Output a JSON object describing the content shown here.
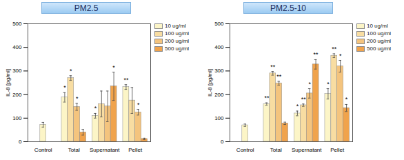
{
  "chart_data": [
    {
      "type": "bar",
      "title": "PM2.5",
      "ylabel": "IL-8 [pg/ml]",
      "categories": [
        "Control",
        "Total",
        "Supernatant",
        "Pellet"
      ],
      "ylim": [
        0,
        500
      ],
      "yticks": [
        0,
        100,
        200,
        300,
        400,
        500
      ],
      "legend": "top-right",
      "series": [
        {
          "name": "10 ug/ml",
          "color": "#fcf5c7",
          "values": [
            72,
            188,
            110,
            232
          ],
          "errors": [
            10,
            20,
            10,
            10
          ],
          "annotations": [
            null,
            "*",
            "*",
            "**"
          ]
        },
        {
          "name": "100 ug/ml",
          "color": "#f8dda2",
          "values": [
            null,
            270,
            160,
            175
          ],
          "errors": [
            null,
            10,
            55,
            55
          ],
          "annotations": [
            null,
            "*",
            null,
            null
          ]
        },
        {
          "name": "200 ug/ml",
          "color": "#f4c47e",
          "values": [
            null,
            148,
            150,
            125
          ],
          "errors": [
            null,
            15,
            65,
            12
          ],
          "annotations": [
            null,
            "*",
            null,
            "*"
          ]
        },
        {
          "name": "500 ug/ml",
          "color": "#f0a34c",
          "values": [
            null,
            40,
            235,
            12
          ],
          "errors": [
            null,
            12,
            60,
            3
          ],
          "annotations": [
            null,
            null,
            "*",
            null
          ]
        }
      ]
    },
    {
      "type": "bar",
      "title": "PM2.5-10",
      "ylabel": "IL-8 [pg/ml]",
      "categories": [
        "Control",
        "Total",
        "Supernatant",
        "Pellet"
      ],
      "ylim": [
        0,
        500
      ],
      "yticks": [
        0,
        100,
        200,
        300,
        400,
        500
      ],
      "legend": "top-right",
      "series": [
        {
          "name": "10 ug/ml",
          "color": "#fcf5c7",
          "values": [
            70,
            160,
            120,
            203
          ],
          "errors": [
            5,
            5,
            10,
            22
          ],
          "annotations": [
            null,
            "**",
            "*",
            "*"
          ]
        },
        {
          "name": "100 ug/ml",
          "color": "#f8dda2",
          "values": [
            null,
            290,
            155,
            365
          ],
          "errors": [
            null,
            8,
            5,
            8
          ],
          "annotations": [
            null,
            "**",
            "**",
            "**"
          ]
        },
        {
          "name": "200 ug/ml",
          "color": "#f4c47e",
          "values": [
            null,
            248,
            205,
            320
          ],
          "errors": [
            null,
            8,
            20,
            25
          ],
          "annotations": [
            null,
            "**",
            "*",
            "*"
          ]
        },
        {
          "name": "500 ug/ml",
          "color": "#f0a34c",
          "values": [
            null,
            78,
            328,
            143
          ],
          "errors": [
            null,
            5,
            20,
            15
          ],
          "annotations": [
            null,
            null,
            "**",
            "*"
          ]
        }
      ]
    }
  ]
}
